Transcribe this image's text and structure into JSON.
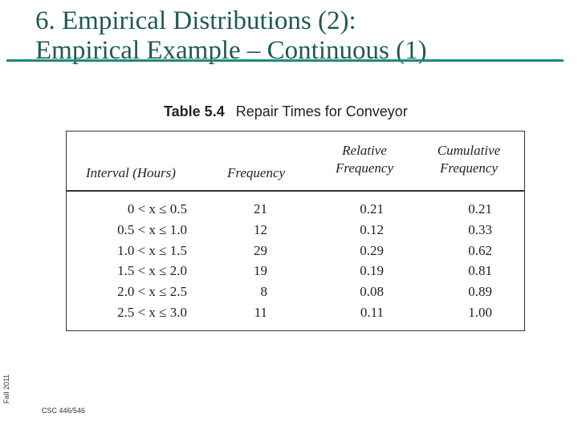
{
  "slide": {
    "title_line1": "6. Empirical Distributions (2):",
    "title_line2": "Empirical Example – Continuous (1)",
    "side_label": "Fall 2011",
    "footer": "CSC 446/546",
    "accent_color": "#1e8a7c",
    "title_color": "#1f5a52"
  },
  "table": {
    "number": "Table 5.4",
    "caption": "Repair Times for Conveyor",
    "headers": {
      "interval": "Interval (Hours)",
      "frequency": "Frequency",
      "relative_line1": "Relative",
      "relative_line2": "Frequency",
      "cumulative_line1": "Cumulative",
      "cumulative_line2": "Frequency"
    },
    "rows": [
      {
        "interval": "0 < x ≤ 0.5",
        "frequency": "21",
        "relative": "0.21",
        "cumulative": "0.21"
      },
      {
        "interval": "0.5 < x ≤ 1.0",
        "frequency": "12",
        "relative": "0.12",
        "cumulative": "0.33"
      },
      {
        "interval": "1.0 < x ≤ 1.5",
        "frequency": "29",
        "relative": "0.29",
        "cumulative": "0.62"
      },
      {
        "interval": "1.5 < x ≤ 2.0",
        "frequency": "19",
        "relative": "0.19",
        "cumulative": "0.81"
      },
      {
        "interval": "2.0 < x ≤ 2.5",
        "frequency": "8",
        "relative": "0.08",
        "cumulative": "0.89"
      },
      {
        "interval": "2.5 < x ≤ 3.0",
        "frequency": "11",
        "relative": "0.11",
        "cumulative": "1.00"
      }
    ]
  }
}
